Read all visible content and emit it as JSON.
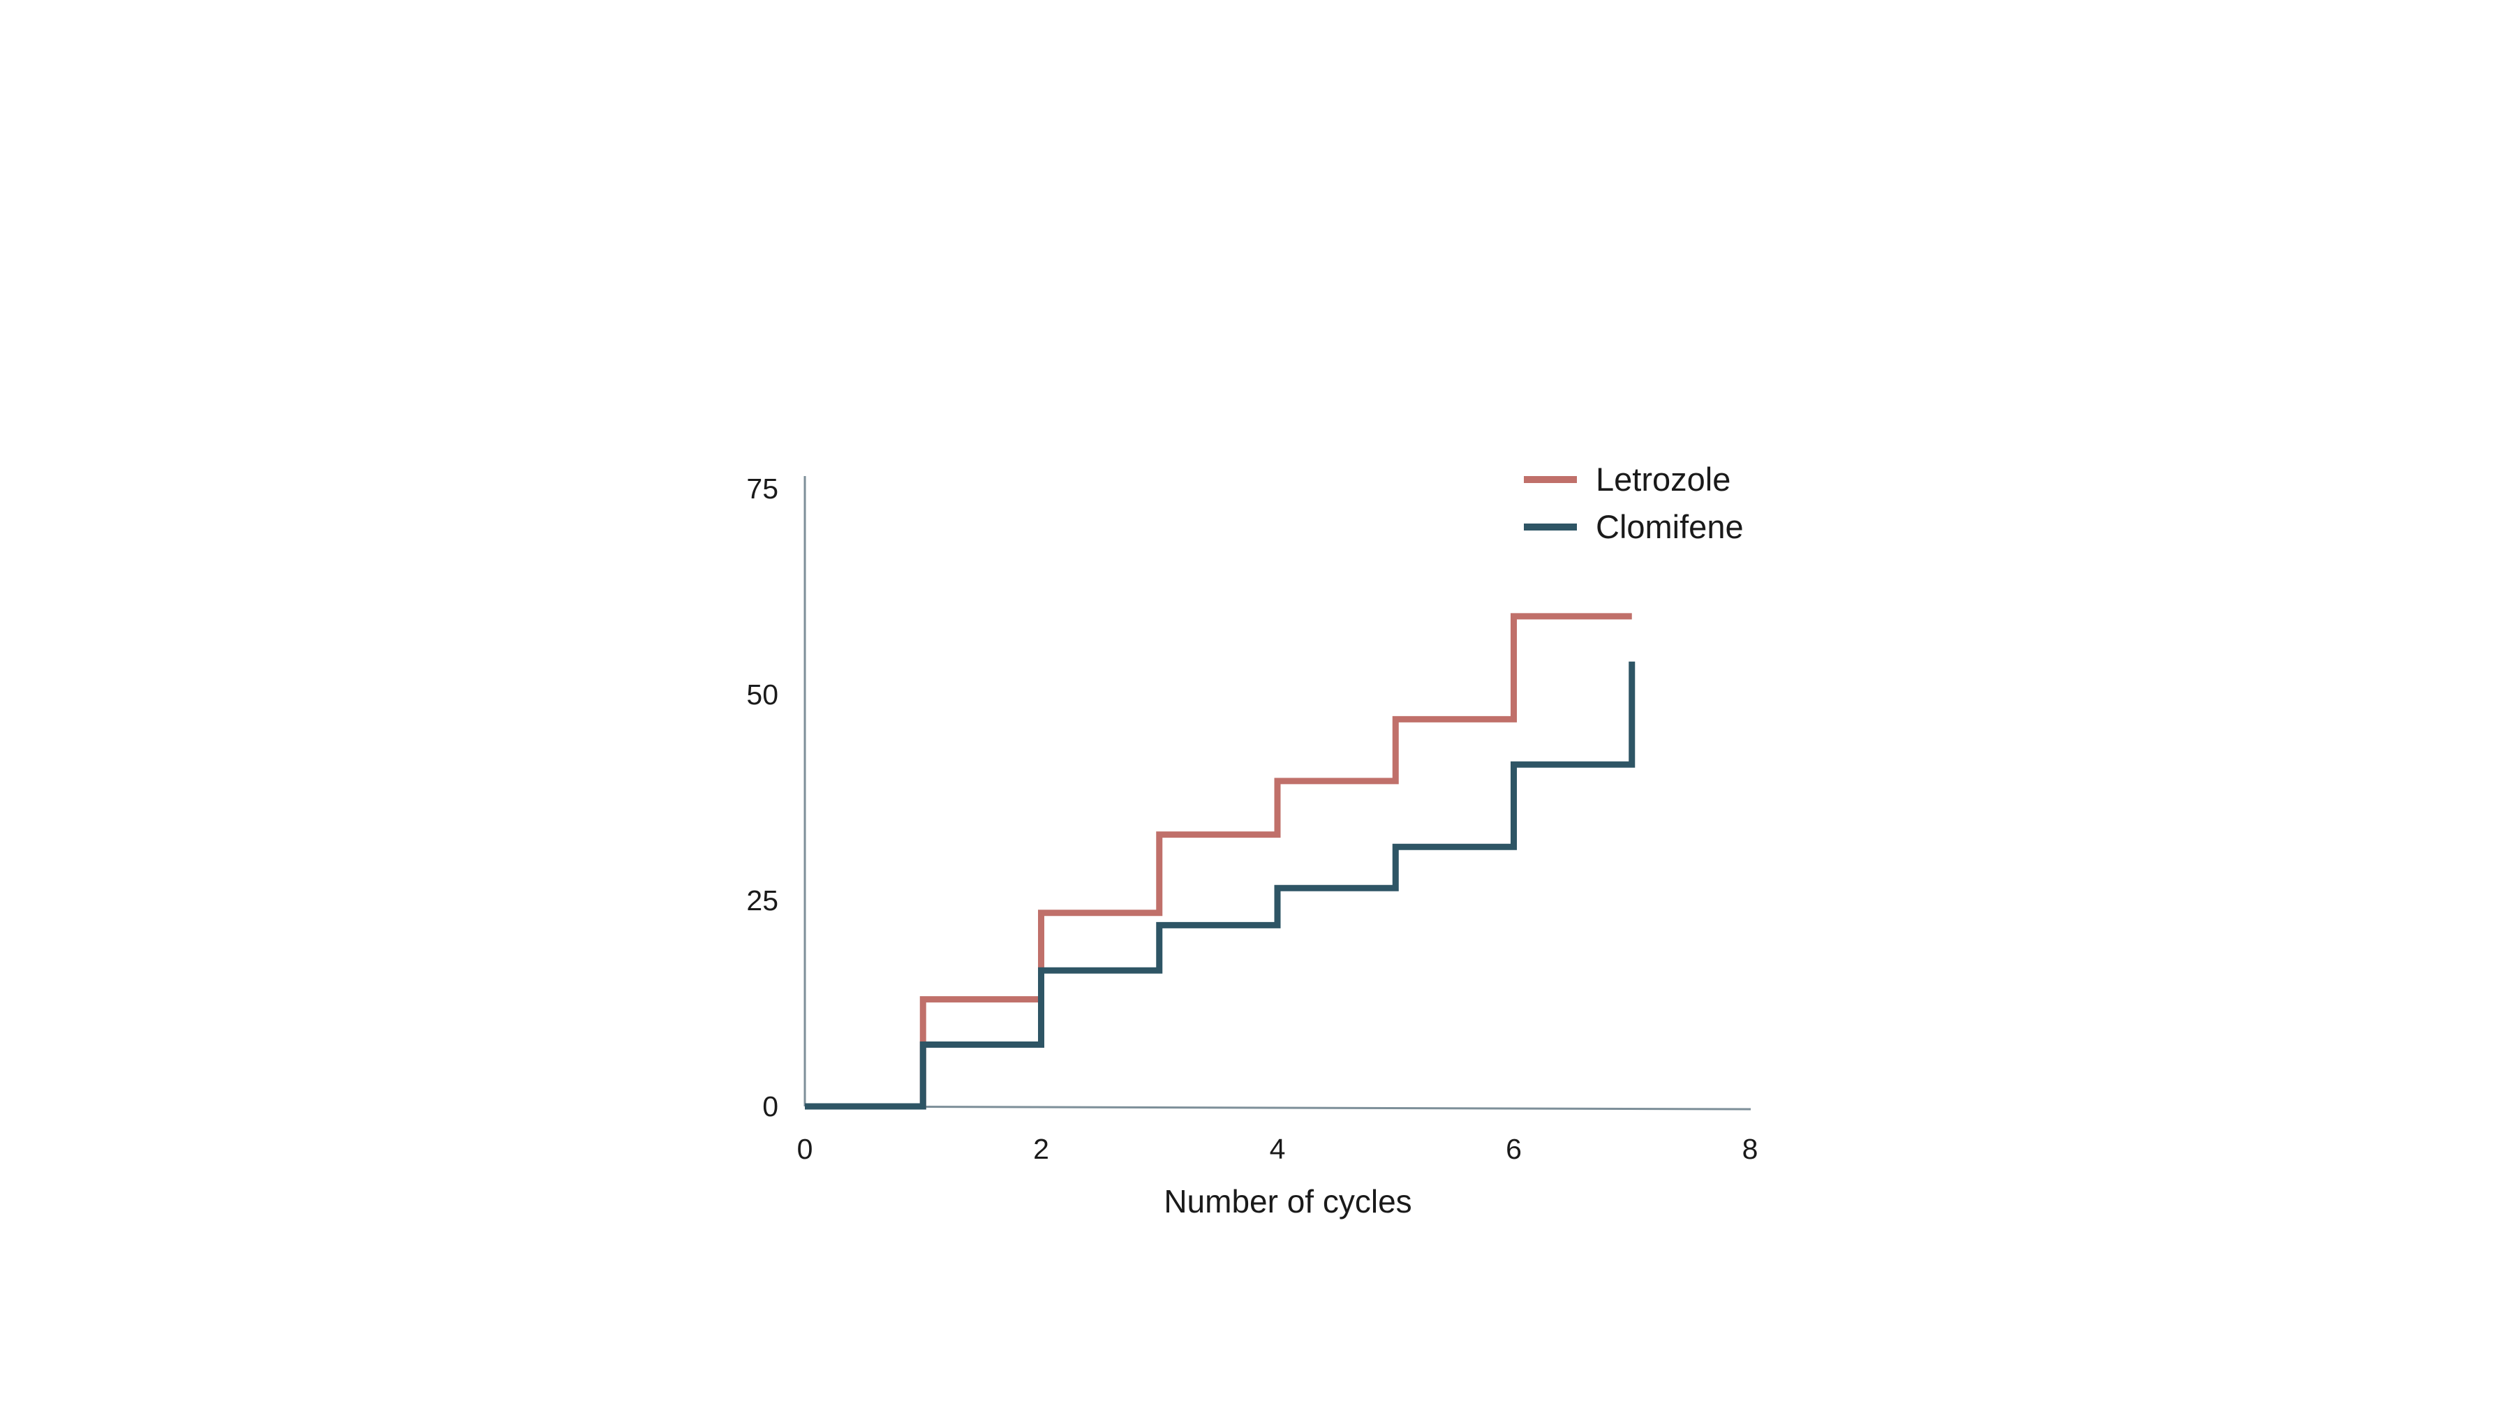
{
  "chart_data": {
    "type": "line",
    "step": true,
    "title": "",
    "xlabel": "Number of cycles",
    "ylabel": "",
    "xlim": [
      0,
      8
    ],
    "ylim": [
      0,
      75
    ],
    "x_ticks": [
      "0",
      "2",
      "4",
      "6",
      "8"
    ],
    "y_ticks": [
      "0",
      "25",
      "50",
      "75"
    ],
    "grid": false,
    "legend_position": "top-right",
    "series": [
      {
        "name": "Letrozole",
        "color": "#c0706a",
        "x": [
          0,
          1,
          2,
          3,
          4,
          5,
          6,
          7
        ],
        "y": [
          0,
          13,
          23.5,
          33,
          39.5,
          47,
          59.5,
          59.5
        ]
      },
      {
        "name": "Clomifene",
        "color": "#2e5565",
        "x": [
          0,
          1,
          2,
          3,
          4,
          5,
          6,
          7
        ],
        "y": [
          0,
          7.5,
          16.5,
          22,
          26.5,
          31.5,
          41.5,
          54
        ]
      }
    ]
  }
}
